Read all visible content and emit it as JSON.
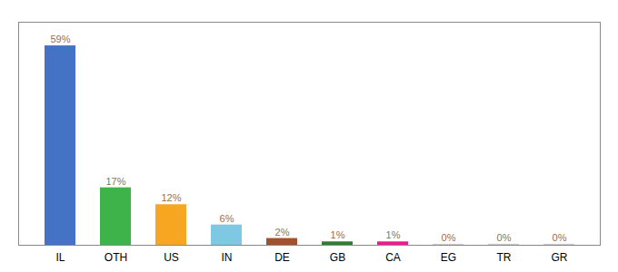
{
  "chart_data": {
    "type": "bar",
    "categories": [
      "IL",
      "OTH",
      "US",
      "IN",
      "DE",
      "GB",
      "CA",
      "EG",
      "TR",
      "GR"
    ],
    "values": [
      59,
      17,
      12,
      6,
      2,
      1,
      1,
      0.3,
      0.3,
      0.3
    ],
    "value_labels": [
      "59%",
      "17%",
      "12%",
      "6%",
      "2%",
      "1%",
      "1%",
      "0%",
      "0%",
      "0%"
    ],
    "colors": [
      "#4472c4",
      "#3db34a",
      "#f6a621",
      "#7ec8e3",
      "#a0522d",
      "#2e7d32",
      "#e91e8c",
      "#cccccc",
      "#cccccc",
      "#cccccc"
    ],
    "ylim": [
      0,
      66
    ],
    "yticks": [],
    "grid": false,
    "data_labels": true,
    "tick_labels": "x"
  }
}
